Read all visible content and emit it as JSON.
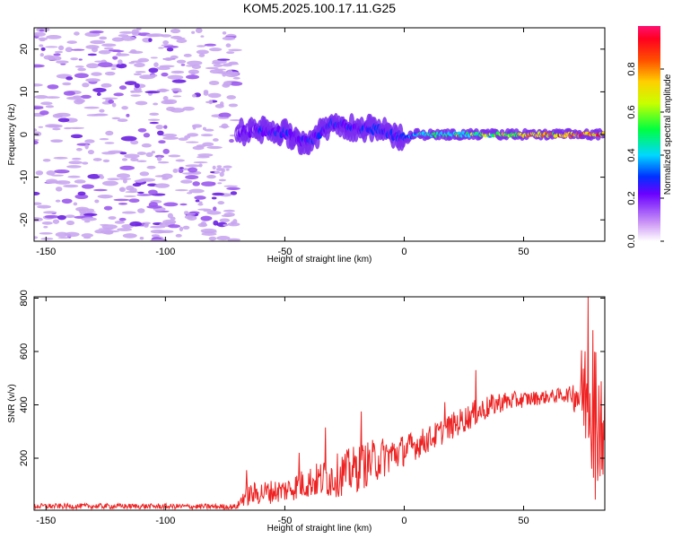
{
  "title": "KOM5.2025.100.17.11.G25",
  "colors": {
    "snr_line": "#ee2222",
    "noise": "#c9a6f0",
    "blob": "#6a1fe0",
    "background": "#ffffff"
  },
  "chart_data": [
    {
      "type": "heatmap",
      "title": "KOM5.2025.100.17.11.G25",
      "xlabel": "Height of straight line (km)",
      "ylabel": "Frequency (Hz)",
      "colorbar_label": "Normalized spectral amplitude",
      "xlim": [
        -155,
        84
      ],
      "ylim": [
        -25,
        25
      ],
      "colorbar_range": [
        0,
        1
      ],
      "x_ticks": [
        -150,
        -100,
        -50,
        0,
        50
      ],
      "y_ticks": [
        -20,
        -10,
        0,
        10,
        20
      ],
      "colorbar_ticks": [
        0.0,
        0.2,
        0.4,
        0.6,
        0.8
      ],
      "noise_region_x": [
        -155,
        -70
      ],
      "ridge": {
        "x": [
          -70,
          -60,
          -50,
          -45,
          -40,
          -35,
          -30,
          -25,
          -20,
          -15,
          -10,
          -5,
          0,
          5,
          10,
          20,
          30,
          40,
          50,
          60,
          70,
          84
        ],
        "y": [
          0.5,
          1,
          0.5,
          -1,
          -2,
          0.5,
          2.5,
          2,
          1.5,
          1.5,
          1,
          0,
          -1,
          0,
          0,
          0,
          0,
          0,
          0,
          0,
          0,
          0
        ],
        "amplitude": [
          0.2,
          0.3,
          0.3,
          0.25,
          0.3,
          0.3,
          0.35,
          0.3,
          0.3,
          0.35,
          0.35,
          0.35,
          0.4,
          0.45,
          0.55,
          0.6,
          0.65,
          0.7,
          0.8,
          0.85,
          0.9,
          0.95
        ]
      }
    },
    {
      "type": "line",
      "xlabel": "Height of straight line (km)",
      "ylabel": "SNR (v/v)",
      "xlim": [
        -155,
        84
      ],
      "ylim": [
        5,
        805
      ],
      "x_ticks": [
        -150,
        -100,
        -50,
        0,
        50
      ],
      "y_ticks": [
        200,
        400,
        600,
        800
      ],
      "envelope": {
        "x": [
          -155,
          -120,
          -70,
          -67,
          -60,
          -50,
          -40,
          -30,
          -20,
          -10,
          0,
          10,
          20,
          30,
          40,
          50,
          60,
          70,
          75,
          78,
          80,
          82,
          84
        ],
        "mean": [
          20,
          20,
          18,
          60,
          70,
          80,
          110,
          130,
          160,
          200,
          230,
          270,
          320,
          370,
          410,
          420,
          430,
          440,
          450,
          420,
          400,
          350,
          300
        ],
        "spread": [
          10,
          10,
          10,
          40,
          45,
          45,
          60,
          80,
          90,
          80,
          60,
          50,
          50,
          50,
          40,
          30,
          25,
          30,
          200,
          250,
          300,
          250,
          200
        ]
      },
      "peaks": [
        {
          "x": -66,
          "y": 155
        },
        {
          "x": -44,
          "y": 220
        },
        {
          "x": -33,
          "y": 315
        },
        {
          "x": -18,
          "y": 375
        },
        {
          "x": 17,
          "y": 410
        },
        {
          "x": 30,
          "y": 530
        },
        {
          "x": 77,
          "y": 805
        },
        {
          "x": 79,
          "y": 680
        },
        {
          "x": 80,
          "y": 45
        }
      ]
    }
  ]
}
